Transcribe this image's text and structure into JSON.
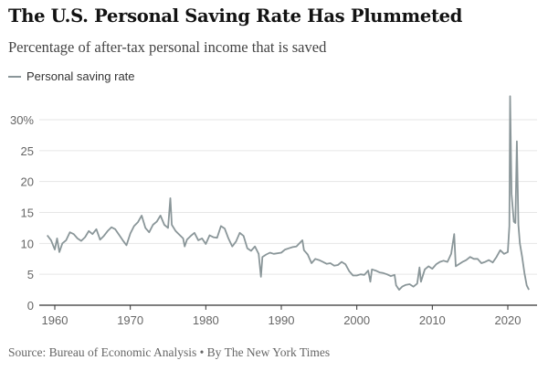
{
  "chart_data": {
    "type": "line",
    "title": "The U.S. Personal Saving Rate Has Plummeted",
    "subtitle": "Percentage of after-tax personal income that is saved",
    "source": "Source: Bureau of Economic Analysis • By The New York Times",
    "xlabel": "",
    "ylabel": "",
    "xlim": [
      1957.9,
      2024
    ],
    "ylim": [
      0,
      30
    ],
    "grid": true,
    "legend_position": "top-left",
    "x_ticks": [
      1960,
      1970,
      1980,
      1990,
      2000,
      2010,
      2020
    ],
    "x_tick_labels": [
      "1960",
      "1970",
      "1980",
      "1990",
      "2000",
      "2010",
      "2020"
    ],
    "y_ticks": [
      0,
      5,
      10,
      15,
      20,
      25,
      30
    ],
    "y_tick_labels": [
      "0",
      "5",
      "10",
      "15",
      "20",
      "25",
      "30%"
    ],
    "colors": {
      "line": "#8a9699",
      "grid": "#e6e6e6",
      "axis": "#333333"
    },
    "series": [
      {
        "name": "Personal saving rate",
        "points": [
          [
            1959,
            11.3
          ],
          [
            1959.5,
            10.5
          ],
          [
            1960,
            9
          ],
          [
            1960.3,
            10.8
          ],
          [
            1960.6,
            8.6
          ],
          [
            1961,
            10
          ],
          [
            1961.5,
            10.5
          ],
          [
            1962,
            11.8
          ],
          [
            1962.5,
            11.5
          ],
          [
            1963,
            10.8
          ],
          [
            1963.5,
            10.4
          ],
          [
            1964,
            11
          ],
          [
            1964.5,
            12
          ],
          [
            1965,
            11.5
          ],
          [
            1965.5,
            12.3
          ],
          [
            1966,
            10.6
          ],
          [
            1966.5,
            11.2
          ],
          [
            1967,
            12
          ],
          [
            1967.5,
            12.6
          ],
          [
            1968,
            12.3
          ],
          [
            1968.5,
            11.4
          ],
          [
            1969,
            10.5
          ],
          [
            1969.5,
            9.7
          ],
          [
            1970,
            11.6
          ],
          [
            1970.5,
            12.8
          ],
          [
            1971,
            13.4
          ],
          [
            1971.5,
            14.5
          ],
          [
            1972,
            12.5
          ],
          [
            1972.5,
            11.8
          ],
          [
            1973,
            13
          ],
          [
            1973.5,
            13.5
          ],
          [
            1974,
            14.5
          ],
          [
            1974.5,
            13
          ],
          [
            1975,
            12.5
          ],
          [
            1975.3,
            17.3
          ],
          [
            1975.5,
            13
          ],
          [
            1976,
            12
          ],
          [
            1976.5,
            11.4
          ],
          [
            1977,
            10.8
          ],
          [
            1977.2,
            9.5
          ],
          [
            1977.5,
            10.6
          ],
          [
            1978,
            11.2
          ],
          [
            1978.5,
            11.7
          ],
          [
            1979,
            10.5
          ],
          [
            1979.5,
            10.8
          ],
          [
            1980,
            9.9
          ],
          [
            1980.5,
            11.3
          ],
          [
            1981,
            11
          ],
          [
            1981.5,
            10.9
          ],
          [
            1982,
            12.8
          ],
          [
            1982.5,
            12.4
          ],
          [
            1983,
            10.8
          ],
          [
            1983.5,
            9.5
          ],
          [
            1984,
            10.3
          ],
          [
            1984.5,
            11.7
          ],
          [
            1985,
            11.2
          ],
          [
            1985.5,
            9.2
          ],
          [
            1986,
            8.8
          ],
          [
            1986.5,
            9.5
          ],
          [
            1987,
            8.3
          ],
          [
            1987.3,
            4.6
          ],
          [
            1987.5,
            7.8
          ],
          [
            1988,
            8.2
          ],
          [
            1988.5,
            8.5
          ],
          [
            1989,
            8.3
          ],
          [
            1990,
            8.5
          ],
          [
            1990.5,
            9
          ],
          [
            1991,
            9.2
          ],
          [
            1991.5,
            9.4
          ],
          [
            1992,
            9.5
          ],
          [
            1992.8,
            10.5
          ],
          [
            1993,
            8.9
          ],
          [
            1993.5,
            8.2
          ],
          [
            1994,
            6.8
          ],
          [
            1994.5,
            7.5
          ],
          [
            1995,
            7.3
          ],
          [
            1995.5,
            7
          ],
          [
            1996,
            6.7
          ],
          [
            1996.5,
            6.8
          ],
          [
            1997,
            6.4
          ],
          [
            1997.5,
            6.5
          ],
          [
            1998,
            7
          ],
          [
            1998.5,
            6.6
          ],
          [
            1999,
            5.5
          ],
          [
            1999.5,
            4.8
          ],
          [
            2000,
            4.8
          ],
          [
            2000.5,
            5
          ],
          [
            2001,
            4.9
          ],
          [
            2001.5,
            5.6
          ],
          [
            2001.8,
            3.8
          ],
          [
            2002,
            5.8
          ],
          [
            2002.5,
            5.6
          ],
          [
            2003,
            5.3
          ],
          [
            2003.5,
            5.2
          ],
          [
            2004,
            5
          ],
          [
            2004.5,
            4.7
          ],
          [
            2005,
            4.9
          ],
          [
            2005.2,
            3.2
          ],
          [
            2005.6,
            2.5
          ],
          [
            2006,
            3
          ],
          [
            2006.5,
            3.3
          ],
          [
            2007,
            3.4
          ],
          [
            2007.5,
            3
          ],
          [
            2008,
            3.5
          ],
          [
            2008.3,
            6.1
          ],
          [
            2008.5,
            3.8
          ],
          [
            2009,
            5.8
          ],
          [
            2009.5,
            6.3
          ],
          [
            2010,
            5.9
          ],
          [
            2010.5,
            6.6
          ],
          [
            2011,
            7
          ],
          [
            2011.5,
            7.2
          ],
          [
            2012,
            7
          ],
          [
            2012.5,
            8.3
          ],
          [
            2012.9,
            11.5
          ],
          [
            2013.1,
            6.3
          ],
          [
            2013.5,
            6.6
          ],
          [
            2014,
            7
          ],
          [
            2014.5,
            7.3
          ],
          [
            2015,
            7.8
          ],
          [
            2015.5,
            7.5
          ],
          [
            2016,
            7.5
          ],
          [
            2016.5,
            6.8
          ],
          [
            2017,
            7
          ],
          [
            2017.5,
            7.3
          ],
          [
            2018,
            6.9
          ],
          [
            2018.5,
            7.8
          ],
          [
            2019,
            8.9
          ],
          [
            2019.5,
            8.3
          ],
          [
            2020,
            8.6
          ],
          [
            2020.2,
            12.8
          ],
          [
            2020.3,
            33.8
          ],
          [
            2020.5,
            18
          ],
          [
            2020.8,
            13.5
          ],
          [
            2021,
            13.3
          ],
          [
            2021.2,
            26.5
          ],
          [
            2021.4,
            13
          ],
          [
            2021.6,
            10
          ],
          [
            2021.9,
            7.8
          ],
          [
            2022.2,
            5.2
          ],
          [
            2022.5,
            3.2
          ],
          [
            2022.8,
            2.5
          ]
        ]
      }
    ]
  }
}
